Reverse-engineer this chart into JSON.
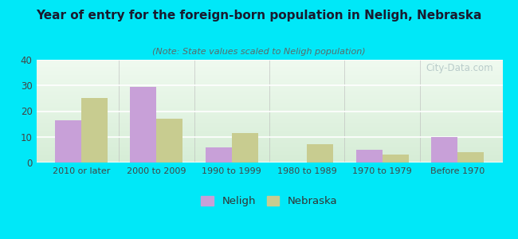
{
  "title": "Year of entry for the foreign-born population in Neligh, Nebraska",
  "subtitle": "(Note: State values scaled to Neligh population)",
  "categories": [
    "2010 or later",
    "2000 to 2009",
    "1990 to 1999",
    "1980 to 1989",
    "1970 to 1979",
    "Before 1970"
  ],
  "neligh_values": [
    16.5,
    29.5,
    6.0,
    0,
    5.0,
    10.0
  ],
  "nebraska_values": [
    25.0,
    17.0,
    11.5,
    7.0,
    3.0,
    4.0
  ],
  "neligh_color": "#c8a0d8",
  "nebraska_color": "#c8cc90",
  "background_outer": "#00e8f8",
  "ylim": [
    0,
    40
  ],
  "yticks": [
    0,
    10,
    20,
    30,
    40
  ],
  "bar_width": 0.35,
  "watermark": "City-Data.com",
  "title_color": "#1a1a2e",
  "subtitle_color": "#5a6a6a"
}
